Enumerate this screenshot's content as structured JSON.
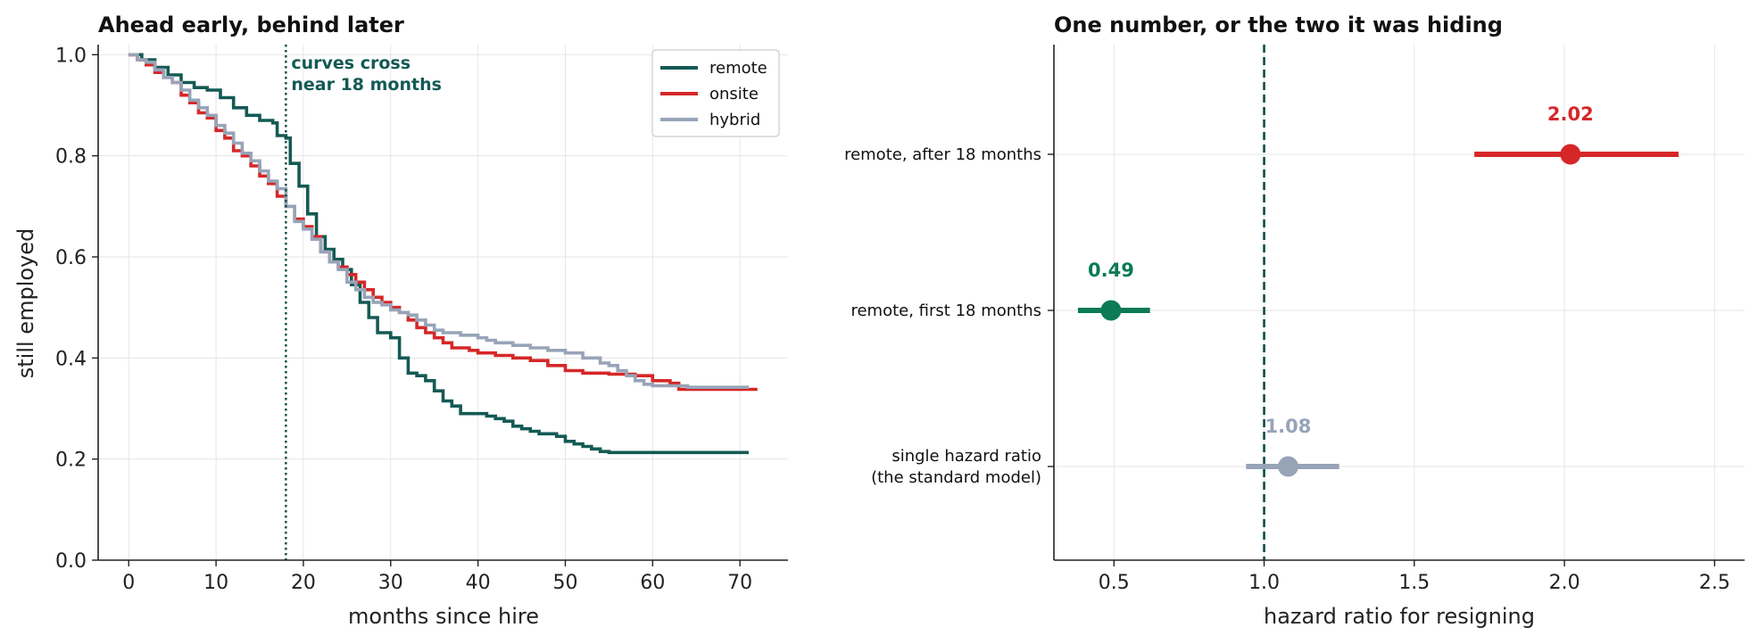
{
  "colors": {
    "remote": "#145a54",
    "onsite": "#d62728",
    "hybrid": "#97a4b8",
    "after": "#d62728",
    "first": "#0b7a55",
    "single": "#97a4b8",
    "refline": "#0f4a48"
  },
  "chart_data": [
    {
      "type": "line",
      "step": true,
      "title": "Ahead early, behind later",
      "xlabel": "months since hire",
      "ylabel": "still employed",
      "xlim": [
        -3.5,
        75.5
      ],
      "ylim": [
        0,
        1.02
      ],
      "xticks": [
        0,
        10,
        20,
        30,
        40,
        50,
        60,
        70
      ],
      "yticks": [
        0.0,
        0.2,
        0.4,
        0.6,
        0.8,
        1.0
      ],
      "xtick_labels": [
        "0",
        "10",
        "20",
        "30",
        "40",
        "50",
        "60",
        "70"
      ],
      "ytick_labels": [
        "0.0",
        "0.2",
        "0.4",
        "0.6",
        "0.8",
        "1.0"
      ],
      "grid": true,
      "legend_position": "top-right",
      "vline": {
        "x": 18,
        "style": "dotted"
      },
      "annotation": {
        "line1": "curves cross",
        "line2": "near 18 months"
      },
      "series": [
        {
          "name": "remote",
          "color_key": "remote",
          "points": [
            [
              0,
              1.0
            ],
            [
              1.5,
              0.99
            ],
            [
              3,
              0.975
            ],
            [
              4.5,
              0.96
            ],
            [
              6,
              0.945
            ],
            [
              7.5,
              0.935
            ],
            [
              9,
              0.93
            ],
            [
              10.5,
              0.915
            ],
            [
              12,
              0.895
            ],
            [
              13.5,
              0.88
            ],
            [
              15,
              0.87
            ],
            [
              16.5,
              0.865
            ],
            [
              17,
              0.84
            ],
            [
              18,
              0.835
            ],
            [
              18.5,
              0.785
            ],
            [
              19.5,
              0.74
            ],
            [
              20.5,
              0.685
            ],
            [
              21.5,
              0.64
            ],
            [
              22.5,
              0.615
            ],
            [
              23.5,
              0.595
            ],
            [
              24.5,
              0.575
            ],
            [
              25.5,
              0.545
            ],
            [
              26.5,
              0.51
            ],
            [
              27.5,
              0.48
            ],
            [
              28.5,
              0.45
            ],
            [
              30,
              0.44
            ],
            [
              31,
              0.4
            ],
            [
              32,
              0.37
            ],
            [
              33,
              0.365
            ],
            [
              34,
              0.355
            ],
            [
              35,
              0.335
            ],
            [
              36,
              0.315
            ],
            [
              37,
              0.305
            ],
            [
              38,
              0.29
            ],
            [
              40,
              0.29
            ],
            [
              41,
              0.285
            ],
            [
              42,
              0.28
            ],
            [
              43,
              0.275
            ],
            [
              44,
              0.265
            ],
            [
              45,
              0.26
            ],
            [
              46,
              0.255
            ],
            [
              47,
              0.25
            ],
            [
              49,
              0.245
            ],
            [
              50,
              0.235
            ],
            [
              51,
              0.23
            ],
            [
              52,
              0.225
            ],
            [
              53,
              0.22
            ],
            [
              54,
              0.215
            ],
            [
              55,
              0.213
            ],
            [
              71,
              0.213
            ]
          ]
        },
        {
          "name": "onsite",
          "color_key": "onsite",
          "points": [
            [
              0,
              1.0
            ],
            [
              1,
              0.99
            ],
            [
              2,
              0.98
            ],
            [
              3,
              0.965
            ],
            [
              4,
              0.955
            ],
            [
              5,
              0.945
            ],
            [
              6,
              0.92
            ],
            [
              7,
              0.905
            ],
            [
              8,
              0.885
            ],
            [
              9,
              0.875
            ],
            [
              10,
              0.85
            ],
            [
              11,
              0.835
            ],
            [
              12,
              0.81
            ],
            [
              13,
              0.8
            ],
            [
              14,
              0.78
            ],
            [
              15,
              0.76
            ],
            [
              16,
              0.745
            ],
            [
              17,
              0.72
            ],
            [
              18,
              0.7
            ],
            [
              19,
              0.675
            ],
            [
              20,
              0.66
            ],
            [
              21,
              0.64
            ],
            [
              22,
              0.61
            ],
            [
              23,
              0.59
            ],
            [
              24,
              0.58
            ],
            [
              25,
              0.565
            ],
            [
              26,
              0.55
            ],
            [
              27,
              0.535
            ],
            [
              28,
              0.52
            ],
            [
              29,
              0.51
            ],
            [
              30,
              0.5
            ],
            [
              31,
              0.49
            ],
            [
              32,
              0.475
            ],
            [
              33,
              0.46
            ],
            [
              34,
              0.45
            ],
            [
              35,
              0.44
            ],
            [
              36,
              0.43
            ],
            [
              37,
              0.42
            ],
            [
              39,
              0.415
            ],
            [
              40,
              0.41
            ],
            [
              42,
              0.405
            ],
            [
              44,
              0.4
            ],
            [
              46,
              0.395
            ],
            [
              48,
              0.385
            ],
            [
              50,
              0.375
            ],
            [
              52,
              0.37
            ],
            [
              55,
              0.368
            ],
            [
              58,
              0.365
            ],
            [
              60,
              0.355
            ],
            [
              62,
              0.35
            ],
            [
              63,
              0.338
            ],
            [
              72,
              0.338
            ]
          ]
        },
        {
          "name": "hybrid",
          "color_key": "hybrid",
          "points": [
            [
              0,
              1.0
            ],
            [
              1,
              0.99
            ],
            [
              2,
              0.985
            ],
            [
              3,
              0.97
            ],
            [
              4,
              0.955
            ],
            [
              5,
              0.945
            ],
            [
              6,
              0.93
            ],
            [
              7,
              0.91
            ],
            [
              8,
              0.895
            ],
            [
              9,
              0.88
            ],
            [
              10,
              0.86
            ],
            [
              11,
              0.845
            ],
            [
              12,
              0.825
            ],
            [
              13,
              0.805
            ],
            [
              14,
              0.79
            ],
            [
              15,
              0.77
            ],
            [
              16,
              0.75
            ],
            [
              17,
              0.735
            ],
            [
              18,
              0.7
            ],
            [
              19,
              0.67
            ],
            [
              20,
              0.655
            ],
            [
              21,
              0.635
            ],
            [
              22,
              0.61
            ],
            [
              23,
              0.59
            ],
            [
              24,
              0.575
            ],
            [
              25,
              0.55
            ],
            [
              26,
              0.535
            ],
            [
              27,
              0.52
            ],
            [
              28,
              0.51
            ],
            [
              29,
              0.505
            ],
            [
              30,
              0.495
            ],
            [
              31,
              0.49
            ],
            [
              32,
              0.485
            ],
            [
              33,
              0.475
            ],
            [
              34,
              0.465
            ],
            [
              35,
              0.455
            ],
            [
              36,
              0.45
            ],
            [
              38,
              0.445
            ],
            [
              40,
              0.44
            ],
            [
              41,
              0.435
            ],
            [
              42,
              0.43
            ],
            [
              44,
              0.425
            ],
            [
              46,
              0.42
            ],
            [
              48,
              0.415
            ],
            [
              50,
              0.41
            ],
            [
              52,
              0.4
            ],
            [
              54,
              0.39
            ],
            [
              55,
              0.385
            ],
            [
              56,
              0.375
            ],
            [
              57,
              0.365
            ],
            [
              58,
              0.355
            ],
            [
              59,
              0.348
            ],
            [
              60,
              0.345
            ],
            [
              64,
              0.342
            ],
            [
              71,
              0.342
            ]
          ]
        }
      ]
    },
    {
      "type": "scatter",
      "subtype": "forest",
      "title": "One number, or the two it was hiding",
      "xlabel": "hazard ratio for resigning",
      "xlim": [
        0.3,
        2.6
      ],
      "xticks": [
        0.5,
        1.0,
        1.5,
        2.0,
        2.5
      ],
      "xtick_labels": [
        "0.5",
        "1.0",
        "1.5",
        "2.0",
        "2.5"
      ],
      "grid": true,
      "reference_line": 1.0,
      "rows": [
        {
          "label_lines": [
            "remote, after 18 months"
          ],
          "estimate": 2.02,
          "label": "2.02",
          "ci": [
            1.7,
            2.38
          ],
          "color_key": "after"
        },
        {
          "label_lines": [
            "remote, first 18 months"
          ],
          "estimate": 0.49,
          "label": "0.49",
          "ci": [
            0.38,
            0.62
          ],
          "color_key": "first"
        },
        {
          "label_lines": [
            "single hazard ratio",
            "(the standard model)"
          ],
          "estimate": 1.08,
          "label": "1.08",
          "ci": [
            0.94,
            1.25
          ],
          "color_key": "single"
        }
      ]
    }
  ]
}
